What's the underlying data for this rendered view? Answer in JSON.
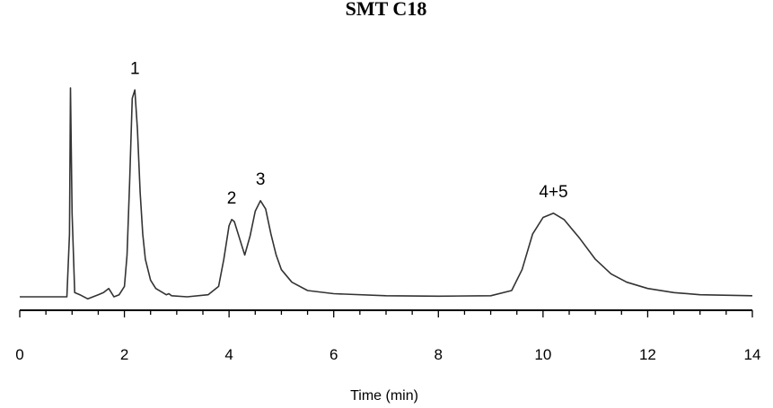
{
  "chart_data": {
    "type": "line",
    "title": "SMT C18",
    "xlabel": "Time (min)",
    "ylabel": "",
    "xlim": [
      0,
      14
    ],
    "x_ticks": [
      0,
      2,
      4,
      6,
      8,
      10,
      12,
      14
    ],
    "x_tick_labels": [
      "0",
      "2",
      "4",
      "6",
      "8",
      "10",
      "12",
      "14"
    ],
    "grid": false,
    "legend": "none",
    "series": [
      {
        "color": "#333333",
        "x": [
          0.0,
          0.9,
          0.95,
          0.97,
          1.0,
          1.05,
          1.15,
          1.3,
          1.5,
          1.6,
          1.7,
          1.75,
          1.8,
          1.9,
          2.0,
          2.05,
          2.1,
          2.15,
          2.2,
          2.25,
          2.3,
          2.35,
          2.4,
          2.5,
          2.6,
          2.8,
          2.85,
          2.9,
          3.2,
          3.6,
          3.8,
          3.9,
          4.0,
          4.05,
          4.1,
          4.2,
          4.3,
          4.4,
          4.5,
          4.6,
          4.7,
          4.8,
          4.9,
          5.0,
          5.2,
          5.5,
          6.0,
          7.0,
          8.0,
          9.0,
          9.4,
          9.6,
          9.8,
          10.0,
          10.2,
          10.4,
          10.7,
          11.0,
          11.3,
          11.6,
          12.0,
          12.5,
          13.0,
          14.0
        ],
        "y": [
          0.0,
          0.0,
          0.3,
          1.0,
          0.4,
          0.02,
          0.01,
          -0.01,
          0.01,
          0.02,
          0.04,
          0.02,
          0.0,
          0.01,
          0.05,
          0.2,
          0.55,
          0.95,
          0.99,
          0.8,
          0.5,
          0.3,
          0.18,
          0.08,
          0.04,
          0.01,
          0.015,
          0.005,
          0.0,
          0.01,
          0.05,
          0.18,
          0.34,
          0.37,
          0.36,
          0.28,
          0.2,
          0.29,
          0.41,
          0.46,
          0.42,
          0.3,
          0.2,
          0.13,
          0.07,
          0.03,
          0.015,
          0.005,
          0.003,
          0.005,
          0.03,
          0.13,
          0.3,
          0.38,
          0.4,
          0.37,
          0.28,
          0.18,
          0.11,
          0.07,
          0.04,
          0.02,
          0.01,
          0.005
        ]
      }
    ],
    "peak_labels": [
      {
        "label": "1",
        "x": 2.2,
        "y": 0.99
      },
      {
        "label": "2",
        "x": 4.05,
        "y": 0.37
      },
      {
        "label": "3",
        "x": 4.6,
        "y": 0.46
      },
      {
        "label": "4+5",
        "x": 10.2,
        "y": 0.4
      }
    ]
  }
}
